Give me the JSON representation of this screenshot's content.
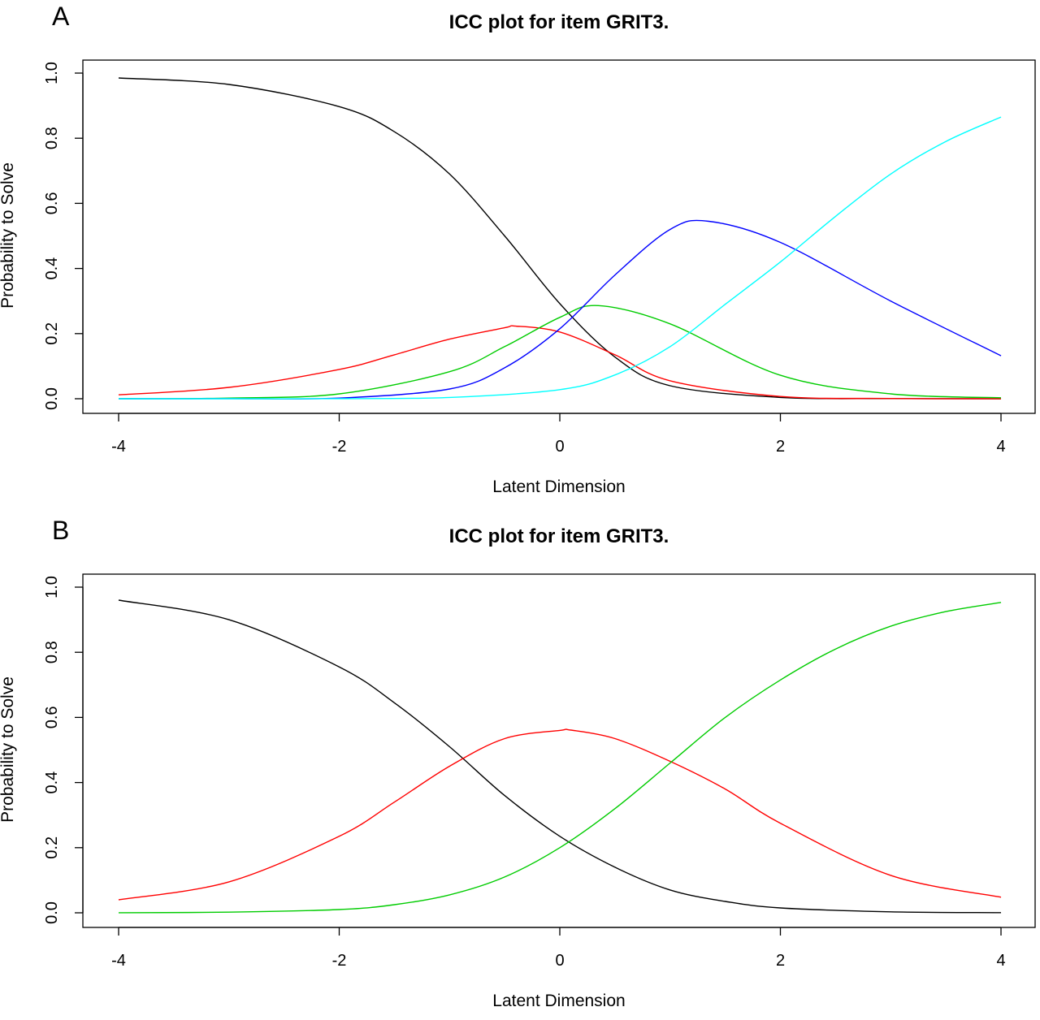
{
  "chart_data": [
    {
      "type": "line",
      "panel_label": "A",
      "title": "ICC plot for item GRIT3.",
      "xlabel": "Latent Dimension",
      "ylabel": "Probability to Solve",
      "xlim": [
        -4,
        4
      ],
      "ylim": [
        0,
        1
      ],
      "x_ticks": [
        -4,
        -2,
        0,
        2,
        4
      ],
      "x_tick_labels": [
        "-4",
        "-2",
        "0",
        "2",
        "4"
      ],
      "y_ticks": [
        0,
        0.2,
        0.4,
        0.6,
        0.8,
        1.0
      ],
      "y_tick_labels": [
        "0.0",
        "0.2",
        "0.4",
        "0.6",
        "0.8",
        "1.0"
      ],
      "grid": false,
      "legend": false,
      "series": [
        {
          "color": "#000000",
          "x": [
            -4,
            -3,
            -2,
            -1.5,
            -1,
            -0.5,
            0,
            0.5,
            1,
            2,
            3,
            4
          ],
          "values": [
            0.985,
            0.965,
            0.897,
            0.82,
            0.69,
            0.5,
            0.292,
            0.128,
            0.04,
            0.004,
            0.0005,
            0.0001
          ]
        },
        {
          "color": "#ff0000",
          "x": [
            -4,
            -3,
            -2,
            -1.5,
            -1,
            -0.5,
            -0.4,
            0,
            0.5,
            1,
            2,
            3,
            4
          ],
          "values": [
            0.012,
            0.035,
            0.09,
            0.135,
            0.183,
            0.218,
            0.223,
            0.205,
            0.135,
            0.055,
            0.007,
            0.0008,
            0.0001
          ]
        },
        {
          "color": "#00cc00",
          "x": [
            -4,
            -3,
            -2,
            -1,
            -0.5,
            0,
            0.35,
            1,
            2,
            3,
            4
          ],
          "values": [
            0.0003,
            0.002,
            0.015,
            0.083,
            0.16,
            0.25,
            0.286,
            0.23,
            0.072,
            0.015,
            0.003
          ]
        },
        {
          "color": "#0000ff",
          "x": [
            -4,
            -3,
            -2,
            -1,
            -0.5,
            0,
            0.5,
            1,
            1.35,
            2,
            3,
            4
          ],
          "values": [
            0,
            0.0002,
            0.002,
            0.03,
            0.095,
            0.215,
            0.38,
            0.52,
            0.545,
            0.48,
            0.3,
            0.132
          ]
        },
        {
          "color": "#00ffff",
          "x": [
            -4,
            -3,
            -2,
            -1,
            0,
            0.5,
            1,
            1.5,
            2,
            2.5,
            3,
            3.5,
            4
          ],
          "values": [
            0,
            0,
            0.0003,
            0.004,
            0.028,
            0.073,
            0.16,
            0.29,
            0.42,
            0.56,
            0.69,
            0.79,
            0.865
          ]
        }
      ]
    },
    {
      "type": "line",
      "panel_label": "B",
      "title": "ICC plot for item GRIT3.",
      "xlabel": "Latent Dimension",
      "ylabel": "Probability to Solve",
      "xlim": [
        -4,
        4
      ],
      "ylim": [
        0,
        1
      ],
      "x_ticks": [
        -4,
        -2,
        0,
        2,
        4
      ],
      "x_tick_labels": [
        "-4",
        "-2",
        "0",
        "2",
        "4"
      ],
      "y_ticks": [
        0,
        0.2,
        0.4,
        0.6,
        0.8,
        1.0
      ],
      "y_tick_labels": [
        "0.0",
        "0.2",
        "0.4",
        "0.6",
        "0.8",
        "1.0"
      ],
      "grid": false,
      "legend": false,
      "series": [
        {
          "color": "#000000",
          "x": [
            -4,
            -3,
            -2,
            -1.5,
            -1,
            -0.5,
            0,
            0.5,
            1,
            1.5,
            2,
            3,
            4
          ],
          "values": [
            0.96,
            0.9,
            0.755,
            0.645,
            0.51,
            0.36,
            0.235,
            0.14,
            0.07,
            0.035,
            0.015,
            0.003,
            0.0005
          ]
        },
        {
          "color": "#ff0000",
          "x": [
            -4,
            -3,
            -2,
            -1.5,
            -1,
            -0.5,
            0,
            0.1,
            0.5,
            1,
            1.5,
            2,
            3,
            4
          ],
          "values": [
            0.04,
            0.095,
            0.235,
            0.34,
            0.45,
            0.535,
            0.56,
            0.561,
            0.535,
            0.465,
            0.38,
            0.275,
            0.115,
            0.048
          ]
        },
        {
          "color": "#00cc00",
          "x": [
            -4,
            -3,
            -2,
            -1.5,
            -1,
            -0.5,
            0,
            0.5,
            1,
            1.5,
            2,
            2.5,
            3,
            3.5,
            4
          ],
          "values": [
            0.0003,
            0.002,
            0.01,
            0.025,
            0.055,
            0.11,
            0.2,
            0.32,
            0.46,
            0.6,
            0.715,
            0.81,
            0.88,
            0.925,
            0.953
          ]
        }
      ]
    }
  ]
}
